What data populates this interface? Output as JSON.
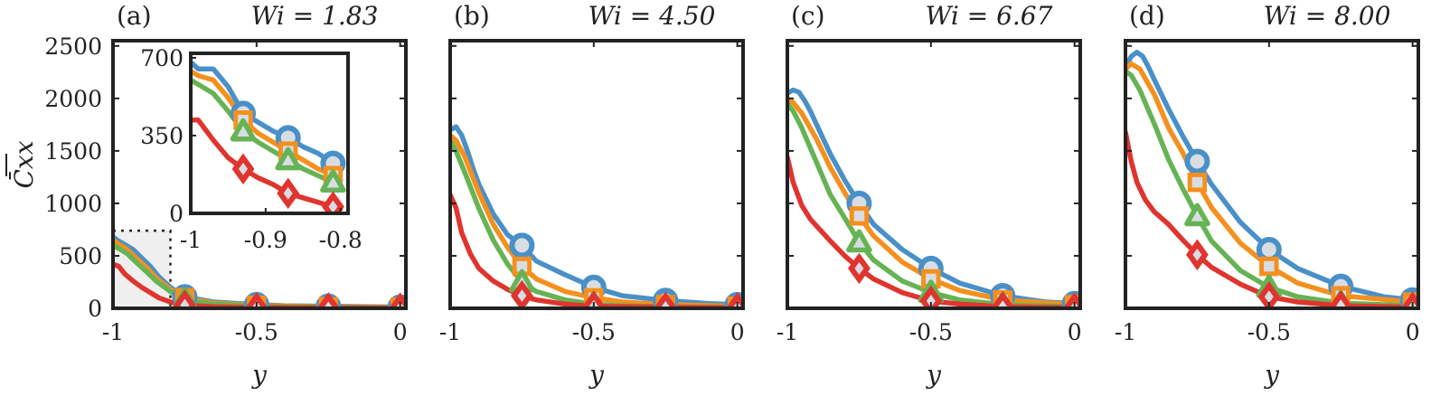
{
  "figure": {
    "ylabel": "C̄xx",
    "xlabel": "y"
  },
  "colors": {
    "blue": "#4a90c8",
    "orange": "#f5901e",
    "green": "#66b354",
    "red": "#e0342f",
    "marker_fill": "#d8dde3",
    "axis": "#222222",
    "inset_bg": "#efefef"
  },
  "chart_data": [
    {
      "type": "line",
      "panel_label": "(a)",
      "wi_text": "Wi = 1.83",
      "xlabel": "y",
      "ylabel": "C̄xx",
      "xlim": [
        -1,
        0.02
      ],
      "ylim": [
        0,
        2550
      ],
      "xticks": [
        -1,
        -0.5,
        0
      ],
      "xtick_labels": [
        "-1",
        "-0.5",
        "0"
      ],
      "yticks": [
        0,
        500,
        1000,
        1500,
        2000,
        2500
      ],
      "ytick_labels": [
        "0",
        "500",
        "1000",
        "1500",
        "2000",
        "2500"
      ],
      "show_yticklabels": true,
      "series": [
        {
          "name": "blue",
          "marker": "circle",
          "x": [
            -1,
            -0.98,
            -0.96,
            -0.93,
            -0.9,
            -0.87,
            -0.84,
            -0.8,
            -0.75,
            -0.65,
            -0.5,
            -0.4,
            -0.25,
            -0.1,
            0
          ],
          "y": [
            680,
            640,
            610,
            560,
            480,
            400,
            300,
            200,
            110,
            60,
            35,
            25,
            20,
            15,
            12
          ],
          "markers_x": [
            -0.75,
            -0.5,
            -0.25,
            0
          ]
        },
        {
          "name": "orange",
          "marker": "square",
          "x": [
            -1,
            -0.98,
            -0.95,
            -0.92,
            -0.88,
            -0.85,
            -0.8,
            -0.75,
            -0.65,
            -0.5,
            -0.25,
            0
          ],
          "y": [
            650,
            610,
            560,
            480,
            380,
            290,
            180,
            100,
            50,
            28,
            15,
            10
          ],
          "markers_x": [
            -0.75,
            -0.5,
            -0.25,
            0
          ]
        },
        {
          "name": "green",
          "marker": "triangle",
          "x": [
            -1,
            -0.98,
            -0.95,
            -0.92,
            -0.88,
            -0.85,
            -0.8,
            -0.75,
            -0.65,
            -0.5,
            -0.25,
            0
          ],
          "y": [
            600,
            570,
            520,
            440,
            340,
            260,
            160,
            80,
            40,
            20,
            12,
            8
          ],
          "markers_x": [
            -0.75,
            -0.5,
            -0.25,
            0
          ]
        },
        {
          "name": "red",
          "marker": "diamond",
          "x": [
            -1,
            -0.98,
            -0.96,
            -0.93,
            -0.9,
            -0.87,
            -0.84,
            -0.8,
            -0.75,
            -0.65,
            -0.5,
            -0.25,
            0
          ],
          "y": [
            420,
            400,
            330,
            260,
            200,
            150,
            100,
            60,
            30,
            15,
            8,
            5,
            3
          ],
          "markers_x": [
            -0.75,
            -0.5,
            -0.25,
            0
          ]
        }
      ],
      "inset": {
        "xlim": [
          -1,
          -0.79
        ],
        "ylim": [
          0,
          720
        ],
        "xticks": [
          -1,
          -0.9,
          -0.8
        ],
        "xtick_labels": [
          "-1",
          "-0.9",
          "-0.8"
        ],
        "yticks": [
          0,
          350,
          700
        ],
        "ytick_labels": [
          "0",
          "350",
          "700"
        ],
        "zoom_region": {
          "x": [
            -1,
            -0.8
          ],
          "y": [
            0,
            740
          ]
        },
        "series": [
          {
            "name": "blue",
            "marker": "circle",
            "x": [
              -1,
              -0.99,
              -0.97,
              -0.95,
              -0.93,
              -0.91,
              -0.89,
              -0.87,
              -0.85,
              -0.83,
              -0.81,
              -0.8
            ],
            "y": [
              680,
              650,
              650,
              570,
              450,
              410,
              370,
              340,
              300,
              270,
              225,
              200
            ],
            "markers_x": [
              -0.93,
              -0.87,
              -0.81
            ]
          },
          {
            "name": "orange",
            "marker": "square",
            "x": [
              -1,
              -0.99,
              -0.97,
              -0.95,
              -0.93,
              -0.91,
              -0.89,
              -0.87,
              -0.85,
              -0.83,
              -0.81,
              -0.8
            ],
            "y": [
              640,
              620,
              600,
              520,
              420,
              360,
              320,
              280,
              240,
              200,
              170,
              150
            ],
            "markers_x": [
              -0.93,
              -0.87,
              -0.81
            ]
          },
          {
            "name": "green",
            "marker": "triangle",
            "x": [
              -1,
              -0.99,
              -0.97,
              -0.95,
              -0.93,
              -0.91,
              -0.89,
              -0.87,
              -0.85,
              -0.83,
              -0.81,
              -0.8
            ],
            "y": [
              600,
              580,
              540,
              460,
              370,
              320,
              280,
              240,
              200,
              170,
              140,
              120
            ],
            "markers_x": [
              -0.93,
              -0.87,
              -0.81
            ]
          },
          {
            "name": "red",
            "marker": "diamond",
            "x": [
              -1,
              -0.99,
              -0.97,
              -0.95,
              -0.93,
              -0.91,
              -0.89,
              -0.87,
              -0.85,
              -0.83,
              -0.81,
              -0.8
            ],
            "y": [
              420,
              420,
              330,
              250,
              200,
              160,
              130,
              90,
              70,
              50,
              30,
              20
            ],
            "markers_x": [
              -0.93,
              -0.87,
              -0.81
            ]
          }
        ]
      }
    },
    {
      "type": "line",
      "panel_label": "(b)",
      "wi_text": "Wi = 4.50",
      "xlabel": "y",
      "xlim": [
        -1,
        0.02
      ],
      "ylim": [
        0,
        2550
      ],
      "xticks": [
        -1,
        -0.5,
        0
      ],
      "xtick_labels": [
        "-1",
        "-0.5",
        "0"
      ],
      "yticks": [
        0,
        500,
        1000,
        1500,
        2000,
        2500
      ],
      "show_yticklabels": false,
      "series": [
        {
          "name": "blue",
          "marker": "circle",
          "x": [
            -1,
            -0.98,
            -0.96,
            -0.94,
            -0.92,
            -0.9,
            -0.85,
            -0.8,
            -0.75,
            -0.7,
            -0.6,
            -0.5,
            -0.4,
            -0.25,
            -0.1,
            0
          ],
          "y": [
            1700,
            1730,
            1650,
            1500,
            1330,
            1180,
            900,
            700,
            600,
            450,
            320,
            200,
            120,
            75,
            45,
            35
          ],
          "markers_x": [
            -0.75,
            -0.5,
            -0.25,
            0
          ]
        },
        {
          "name": "orange",
          "marker": "square",
          "x": [
            -1,
            -0.98,
            -0.95,
            -0.9,
            -0.85,
            -0.8,
            -0.75,
            -0.7,
            -0.6,
            -0.5,
            -0.4,
            -0.25,
            0
          ],
          "y": [
            1650,
            1600,
            1450,
            1100,
            800,
            580,
            400,
            280,
            160,
            100,
            60,
            35,
            20
          ],
          "markers_x": [
            -0.75,
            -0.5,
            -0.25,
            0
          ]
        },
        {
          "name": "green",
          "marker": "triangle",
          "x": [
            -1,
            -0.98,
            -0.95,
            -0.9,
            -0.85,
            -0.8,
            -0.75,
            -0.7,
            -0.6,
            -0.5,
            -0.4,
            -0.25,
            0
          ],
          "y": [
            1600,
            1500,
            1300,
            950,
            650,
            420,
            250,
            160,
            80,
            40,
            25,
            15,
            10
          ],
          "markers_x": [
            -0.75,
            -0.5,
            -0.25,
            0
          ]
        },
        {
          "name": "red",
          "marker": "diamond",
          "x": [
            -1,
            -0.98,
            -0.96,
            -0.93,
            -0.9,
            -0.85,
            -0.8,
            -0.75,
            -0.7,
            -0.6,
            -0.5,
            -0.25,
            0
          ],
          "y": [
            1080,
            960,
            720,
            520,
            380,
            260,
            180,
            120,
            80,
            40,
            20,
            10,
            5
          ],
          "markers_x": [
            -0.75,
            -0.5,
            -0.25,
            0
          ]
        }
      ]
    },
    {
      "type": "line",
      "panel_label": "(c)",
      "wi_text": "Wi = 6.67",
      "xlabel": "y",
      "xlim": [
        -1,
        0.02
      ],
      "ylim": [
        0,
        2550
      ],
      "xticks": [
        -1,
        -0.5,
        0
      ],
      "xtick_labels": [
        "-1",
        "-0.5",
        "0"
      ],
      "yticks": [
        0,
        500,
        1000,
        1500,
        2000,
        2500
      ],
      "show_yticklabels": false,
      "series": [
        {
          "name": "blue",
          "marker": "circle",
          "x": [
            -1,
            -0.98,
            -0.96,
            -0.94,
            -0.92,
            -0.9,
            -0.85,
            -0.8,
            -0.75,
            -0.7,
            -0.6,
            -0.5,
            -0.4,
            -0.25,
            -0.1,
            0
          ],
          "y": [
            2050,
            2080,
            2060,
            1980,
            1880,
            1760,
            1470,
            1220,
            1000,
            800,
            560,
            380,
            240,
            120,
            60,
            45
          ],
          "markers_x": [
            -0.75,
            -0.5,
            -0.25,
            0
          ]
        },
        {
          "name": "orange",
          "marker": "square",
          "x": [
            -1,
            -0.98,
            -0.95,
            -0.9,
            -0.85,
            -0.8,
            -0.75,
            -0.7,
            -0.6,
            -0.5,
            -0.4,
            -0.25,
            0
          ],
          "y": [
            2000,
            1960,
            1860,
            1620,
            1340,
            1100,
            880,
            690,
            440,
            280,
            170,
            80,
            35
          ],
          "markers_x": [
            -0.75,
            -0.5,
            -0.25,
            0
          ]
        },
        {
          "name": "green",
          "marker": "triangle",
          "x": [
            -1,
            -0.98,
            -0.95,
            -0.9,
            -0.85,
            -0.8,
            -0.75,
            -0.7,
            -0.6,
            -0.5,
            -0.4,
            -0.25,
            0
          ],
          "y": [
            1950,
            1880,
            1720,
            1400,
            1080,
            860,
            630,
            460,
            260,
            150,
            80,
            35,
            15
          ],
          "markers_x": [
            -0.75,
            -0.5,
            -0.25,
            0
          ]
        },
        {
          "name": "red",
          "marker": "diamond",
          "x": [
            -1,
            -0.98,
            -0.95,
            -0.92,
            -0.89,
            -0.85,
            -0.8,
            -0.75,
            -0.7,
            -0.6,
            -0.5,
            -0.4,
            -0.25,
            0
          ],
          "y": [
            1440,
            1200,
            980,
            850,
            760,
            640,
            500,
            380,
            280,
            150,
            70,
            40,
            15,
            5
          ],
          "markers_x": [
            -0.75,
            -0.5,
            -0.25,
            0
          ]
        }
      ]
    },
    {
      "type": "line",
      "panel_label": "(d)",
      "wi_text": "Wi = 8.00",
      "xlabel": "y",
      "xlim": [
        -1,
        0.02
      ],
      "ylim": [
        0,
        2550
      ],
      "xticks": [
        -1,
        -0.5,
        0
      ],
      "xtick_labels": [
        "-1",
        "-0.5",
        "0"
      ],
      "yticks": [
        0,
        500,
        1000,
        1500,
        2000,
        2500
      ],
      "show_yticklabels": false,
      "series": [
        {
          "name": "blue",
          "marker": "circle",
          "x": [
            -1,
            -0.98,
            -0.96,
            -0.94,
            -0.92,
            -0.9,
            -0.85,
            -0.8,
            -0.75,
            -0.7,
            -0.6,
            -0.5,
            -0.4,
            -0.25,
            -0.1,
            0
          ],
          "y": [
            2300,
            2400,
            2440,
            2400,
            2300,
            2180,
            1900,
            1640,
            1400,
            1180,
            820,
            560,
            380,
            210,
            110,
            80
          ],
          "markers_x": [
            -0.75,
            -0.5,
            -0.25,
            0
          ]
        },
        {
          "name": "orange",
          "marker": "square",
          "x": [
            -1,
            -0.98,
            -0.95,
            -0.9,
            -0.85,
            -0.8,
            -0.75,
            -0.7,
            -0.6,
            -0.5,
            -0.4,
            -0.25,
            0
          ],
          "y": [
            2280,
            2330,
            2280,
            2040,
            1720,
            1480,
            1200,
            960,
            620,
            400,
            240,
            120,
            60
          ],
          "markers_x": [
            -0.75,
            -0.5,
            -0.25,
            0
          ]
        },
        {
          "name": "green",
          "marker": "triangle",
          "x": [
            -1,
            -0.98,
            -0.95,
            -0.9,
            -0.85,
            -0.8,
            -0.75,
            -0.7,
            -0.6,
            -0.5,
            -0.4,
            -0.25,
            0
          ],
          "y": [
            2260,
            2220,
            2080,
            1760,
            1420,
            1140,
            880,
            640,
            360,
            200,
            110,
            50,
            25
          ],
          "markers_x": [
            -0.75,
            -0.5,
            -0.25,
            0
          ]
        },
        {
          "name": "red",
          "marker": "diamond",
          "x": [
            -1,
            -0.98,
            -0.96,
            -0.93,
            -0.9,
            -0.85,
            -0.8,
            -0.75,
            -0.7,
            -0.6,
            -0.5,
            -0.4,
            -0.25,
            0
          ],
          "y": [
            1680,
            1400,
            1200,
            1030,
            920,
            800,
            650,
            510,
            390,
            230,
            110,
            60,
            25,
            10
          ],
          "markers_x": [
            -0.75,
            -0.5,
            -0.25,
            0
          ]
        }
      ]
    }
  ]
}
